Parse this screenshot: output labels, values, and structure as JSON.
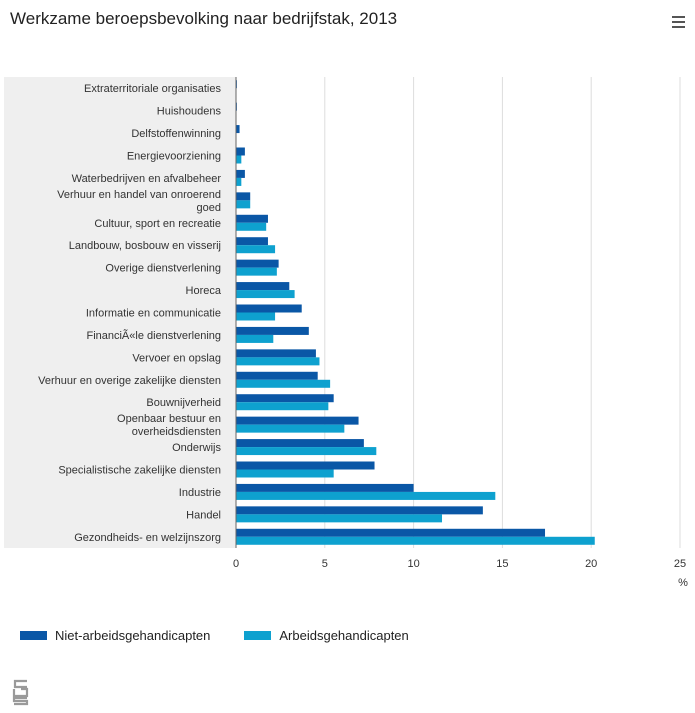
{
  "header": {
    "title": "Werkzame beroepsbevolking naar bedrijfstak, 2013"
  },
  "colors": {
    "series1": "#0a57a6",
    "series2": "#0ea1cf",
    "plot_bg": "#efefef",
    "grid": "#dddddd"
  },
  "legend": {
    "items": [
      {
        "label": "Niet-arbeidsgehandicapten"
      },
      {
        "label": "Arbeidsgehandicapten"
      }
    ]
  },
  "chart_data": {
    "type": "bar",
    "orientation": "horizontal",
    "title": "Werkzame beroepsbevolking naar bedrijfstak, 2013",
    "xlabel": "%",
    "xlim": [
      0,
      25
    ],
    "xticks": [
      0,
      5,
      10,
      15,
      20,
      25
    ],
    "grid": true,
    "legend_position": "bottom-left",
    "categories": [
      [
        "Extraterritoriale organisaties"
      ],
      [
        "Huishoudens"
      ],
      [
        "Delfstoffenwinning"
      ],
      [
        "Energievoorziening"
      ],
      [
        "Waterbedrijven en afvalbeheer"
      ],
      [
        "Verhuur en handel van onroerend",
        "goed"
      ],
      [
        "Cultuur, sport en recreatie"
      ],
      [
        "Landbouw, bosbouw en visserij"
      ],
      [
        "Overige dienstverlening"
      ],
      [
        "Horeca"
      ],
      [
        "Informatie en communicatie"
      ],
      [
        "FinanciÃ«le dienstverlening"
      ],
      [
        "Vervoer en opslag"
      ],
      [
        "Verhuur en overige zakelijke diensten"
      ],
      [
        "Bouwnijverheid"
      ],
      [
        "Openbaar bestuur en",
        "overheidsdiensten"
      ],
      [
        "Onderwijs"
      ],
      [
        "Specialistische zakelijke diensten"
      ],
      [
        "Industrie"
      ],
      [
        "Handel"
      ],
      [
        "Gezondheids- en welzijnszorg"
      ]
    ],
    "series": [
      {
        "name": "Niet-arbeidsgehandicapten",
        "values": [
          0.05,
          0.05,
          0.2,
          0.5,
          0.5,
          0.8,
          1.8,
          1.8,
          2.4,
          3.0,
          3.7,
          4.1,
          4.5,
          4.6,
          5.5,
          6.9,
          7.2,
          7.8,
          10.0,
          13.9,
          17.4
        ]
      },
      {
        "name": "Arbeidsgehandicapten",
        "values": [
          0,
          0,
          0,
          0.3,
          0.3,
          0.8,
          1.7,
          2.2,
          2.3,
          3.3,
          2.2,
          2.1,
          4.7,
          5.3,
          5.2,
          6.1,
          7.9,
          5.5,
          14.6,
          11.6,
          20.2
        ]
      }
    ]
  }
}
